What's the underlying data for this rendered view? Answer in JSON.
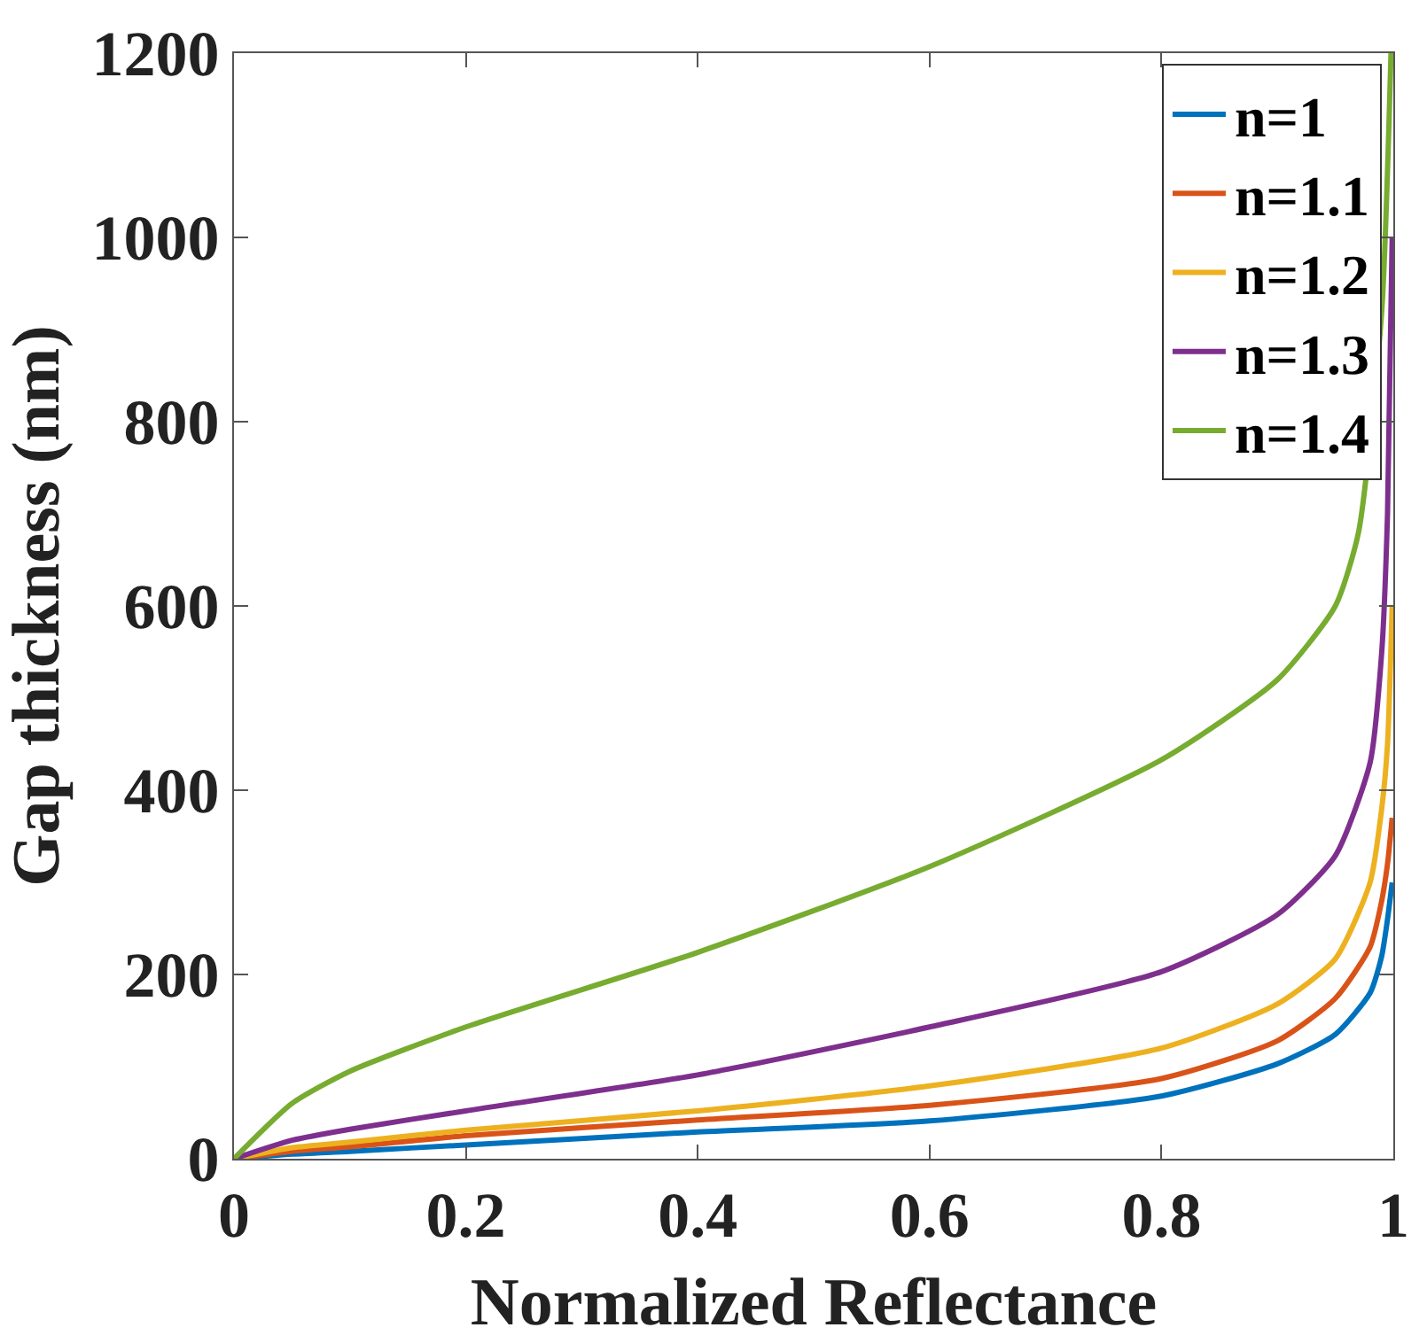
{
  "chart_data": {
    "type": "line",
    "xlabel": "Normalized Reflectance",
    "ylabel": "Gap thickness (nm)",
    "xlim": [
      0,
      1
    ],
    "xticks": [
      0,
      0.2,
      0.4,
      0.6,
      0.8,
      1
    ],
    "ylim": [
      0,
      1200
    ],
    "yticks": [
      0,
      200,
      400,
      600,
      800,
      1000,
      1200
    ],
    "legend": "top right",
    "marker": "none",
    "line_style": "solid",
    "x": [
      0,
      0.05,
      0.1,
      0.2,
      0.4,
      0.6,
      0.8,
      0.9,
      0.95,
      0.98,
      0.99,
      0.995,
      0.999
    ],
    "series": [
      {
        "name": "n=1",
        "color": "#0072bd",
        "values": [
          0,
          5,
          8,
          15,
          29,
          41,
          68,
          103,
          135,
          180,
          220,
          260,
          300
        ]
      },
      {
        "name": "n=1.1",
        "color": "#d95319",
        "values": [
          0,
          8,
          13,
          25,
          42,
          58,
          87,
          128,
          174,
          230,
          280,
          320,
          370
        ]
      },
      {
        "name": "n=1.2",
        "color": "#edb120",
        "values": [
          0,
          12,
          18,
          31,
          52,
          79,
          120,
          168,
          217,
          300,
          380,
          450,
          600
        ]
      },
      {
        "name": "n=1.3",
        "color": "#7e2f8e",
        "values": [
          0,
          20,
          32,
          52,
          91,
          143,
          203,
          265,
          329,
          430,
          550,
          700,
          1000
        ]
      },
      {
        "name": "n=1.4",
        "color": "#77ac30",
        "x": [
          0,
          0.05,
          0.1,
          0.2,
          0.4,
          0.6,
          0.8,
          0.9,
          0.95,
          0.97,
          0.99,
          0.998
        ],
        "values": [
          0,
          60,
          95,
          143,
          224,
          317,
          433,
          520,
          600,
          680,
          920,
          1200
        ]
      }
    ]
  }
}
